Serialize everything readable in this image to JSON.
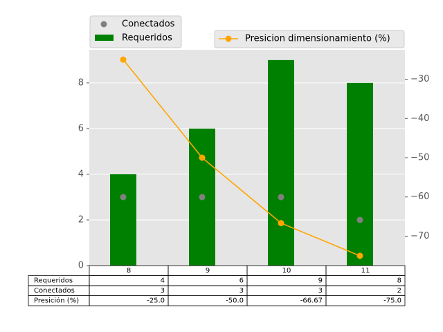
{
  "chart_data": {
    "type": "bar",
    "categories": [
      "8",
      "9",
      "10",
      "11"
    ],
    "series": [
      {
        "name": "Requeridos",
        "type": "bar",
        "axis": "left",
        "color": "#008000",
        "values": [
          4,
          6,
          9,
          8
        ]
      },
      {
        "name": "Conectados",
        "type": "scatter",
        "axis": "left",
        "color": "#808080",
        "values": [
          3,
          3,
          3,
          2
        ]
      },
      {
        "name": "Presicion dimensionamiento (%)",
        "type": "line",
        "axis": "right",
        "color": "#FFA500",
        "values": [
          -25.0,
          -50.0,
          -66.67,
          -75.0
        ]
      }
    ],
    "left_axis": {
      "ylim": [
        0,
        9.45
      ],
      "ticks": [
        0,
        2,
        4,
        6,
        8
      ]
    },
    "right_axis": {
      "ylim": [
        -77.5,
        -22.5
      ],
      "ticks": [
        -30,
        -40,
        -50,
        -60,
        -70
      ],
      "tick_labels": [
        "−30",
        "−40",
        "−50",
        "−60",
        "−70"
      ]
    },
    "grid": true,
    "background_color": "#E5E5E5",
    "legend_left": {
      "position": "top-left",
      "entries": [
        "Conectados",
        "Requeridos"
      ]
    },
    "legend_right": {
      "position": "top-right",
      "entries": [
        "Presicion dimensionamiento (%)"
      ]
    },
    "table": {
      "col_labels": [
        "8",
        "9",
        "10",
        "11"
      ],
      "rows": [
        {
          "label": "Requeridos",
          "cells": [
            "4",
            "6",
            "9",
            "8"
          ]
        },
        {
          "label": "Conectados",
          "cells": [
            "3",
            "3",
            "3",
            "2"
          ]
        },
        {
          "label": "Presición (%)",
          "cells": [
            "-25.0",
            "-50.0",
            "-66.67",
            "-75.0"
          ]
        }
      ]
    }
  }
}
